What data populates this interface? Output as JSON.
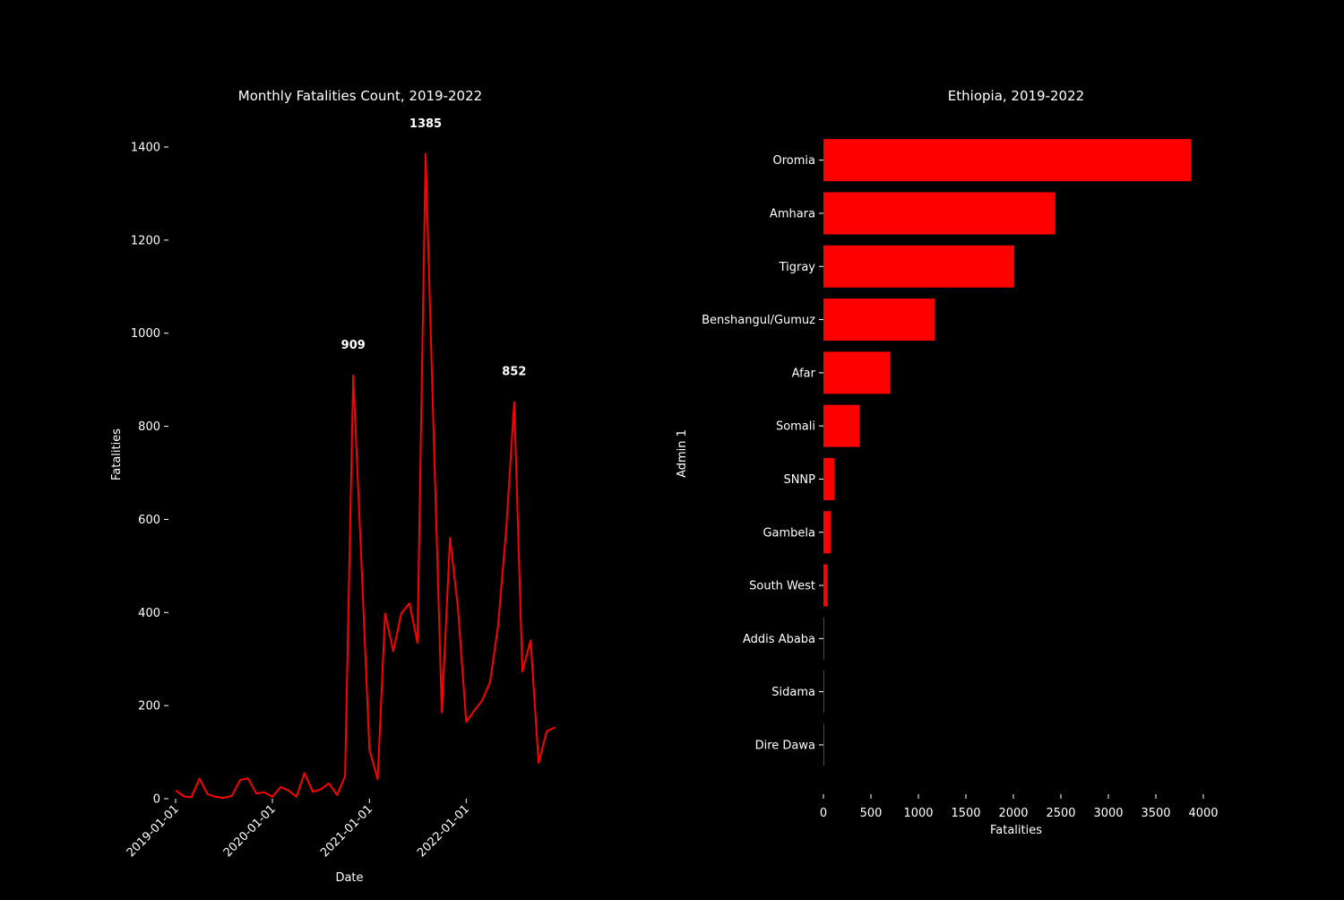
{
  "colors": {
    "background": "#000000",
    "foreground": "#ffffff",
    "accent": "#ff0000"
  },
  "chart_data": [
    {
      "type": "line",
      "title": "Monthly Fatalities Count, 2019-2022",
      "xlabel": "Date",
      "ylabel": "Fatalities",
      "xlim": [
        "2019-01-01",
        "2022-12-01"
      ],
      "ylim": [
        0,
        1400
      ],
      "x_ticks": [
        "2019-01-01",
        "2020-01-01",
        "2021-01-01",
        "2022-01-01"
      ],
      "y_ticks": [
        0,
        200,
        400,
        600,
        800,
        1000,
        1200,
        1400
      ],
      "grid": false,
      "series": [
        {
          "color": "#ff0000",
          "points": [
            {
              "x": "2019-01-01",
              "y": 18
            },
            {
              "x": "2019-02-01",
              "y": 5
            },
            {
              "x": "2019-03-01",
              "y": 3
            },
            {
              "x": "2019-04-01",
              "y": 43
            },
            {
              "x": "2019-05-01",
              "y": 10
            },
            {
              "x": "2019-06-01",
              "y": 4
            },
            {
              "x": "2019-07-01",
              "y": 2
            },
            {
              "x": "2019-08-01",
              "y": 6
            },
            {
              "x": "2019-09-01",
              "y": 40
            },
            {
              "x": "2019-10-01",
              "y": 44
            },
            {
              "x": "2019-11-01",
              "y": 11
            },
            {
              "x": "2019-12-01",
              "y": 14
            },
            {
              "x": "2020-01-01",
              "y": 4
            },
            {
              "x": "2020-02-01",
              "y": 25
            },
            {
              "x": "2020-03-01",
              "y": 18
            },
            {
              "x": "2020-04-01",
              "y": 4
            },
            {
              "x": "2020-05-01",
              "y": 55
            },
            {
              "x": "2020-06-01",
              "y": 15
            },
            {
              "x": "2020-07-01",
              "y": 20
            },
            {
              "x": "2020-08-01",
              "y": 33
            },
            {
              "x": "2020-09-01",
              "y": 8
            },
            {
              "x": "2020-10-01",
              "y": 48
            },
            {
              "x": "2020-11-01",
              "y": 909
            },
            {
              "x": "2020-12-01",
              "y": 520
            },
            {
              "x": "2021-01-01",
              "y": 105
            },
            {
              "x": "2021-02-01",
              "y": 42
            },
            {
              "x": "2021-03-01",
              "y": 398
            },
            {
              "x": "2021-04-01",
              "y": 317
            },
            {
              "x": "2021-05-01",
              "y": 398
            },
            {
              "x": "2021-06-01",
              "y": 420
            },
            {
              "x": "2021-07-01",
              "y": 335
            },
            {
              "x": "2021-08-01",
              "y": 1385
            },
            {
              "x": "2021-09-01",
              "y": 770
            },
            {
              "x": "2021-10-01",
              "y": 185
            },
            {
              "x": "2021-11-01",
              "y": 560
            },
            {
              "x": "2021-12-01",
              "y": 410
            },
            {
              "x": "2022-01-01",
              "y": 165
            },
            {
              "x": "2022-02-01",
              "y": 190
            },
            {
              "x": "2022-03-01",
              "y": 210
            },
            {
              "x": "2022-04-01",
              "y": 250
            },
            {
              "x": "2022-05-01",
              "y": 370
            },
            {
              "x": "2022-06-01",
              "y": 580
            },
            {
              "x": "2022-07-01",
              "y": 852
            },
            {
              "x": "2022-08-01",
              "y": 273
            },
            {
              "x": "2022-09-01",
              "y": 340
            },
            {
              "x": "2022-10-01",
              "y": 77
            },
            {
              "x": "2022-11-01",
              "y": 145
            },
            {
              "x": "2022-12-01",
              "y": 153
            }
          ]
        }
      ],
      "annotations": [
        {
          "label": "909",
          "x": "2020-11-01",
          "y": 909
        },
        {
          "label": "1385",
          "x": "2021-08-01",
          "y": 1385
        },
        {
          "label": "852",
          "x": "2022-07-01",
          "y": 852
        }
      ]
    },
    {
      "type": "bar",
      "orientation": "horizontal",
      "title": "Ethiopia, 2019-2022",
      "xlabel": "Fatalities",
      "ylabel": "Admin 1",
      "xlim": [
        0,
        4000
      ],
      "x_ticks": [
        0,
        500,
        1000,
        1500,
        2000,
        2500,
        3000,
        3500,
        4000
      ],
      "grid": false,
      "color": "#ff0000",
      "categories": [
        "Oromia",
        "Amhara",
        "Tigray",
        "Benshangul/Gumuz",
        "Afar",
        "Somali",
        "SNNP",
        "Gambela",
        "South West",
        "Addis Ababa",
        "Sidama",
        "Dire Dawa"
      ],
      "values": [
        3870,
        2440,
        2010,
        1170,
        705,
        380,
        115,
        75,
        45,
        5,
        4,
        3
      ]
    }
  ]
}
